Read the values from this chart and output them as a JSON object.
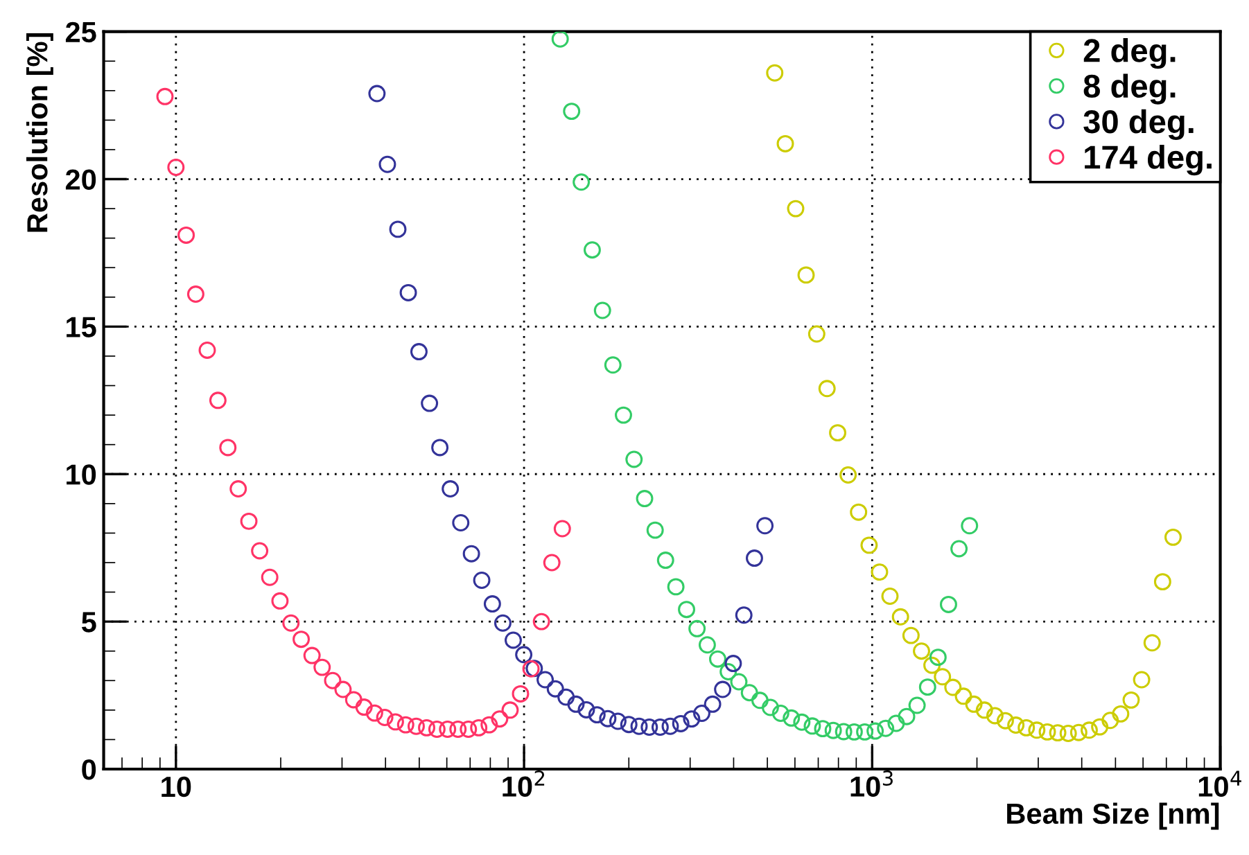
{
  "chart_data": {
    "type": "scatter",
    "xlabel": "Beam Size [nm]",
    "ylabel": "Resolution [%]",
    "log": "x",
    "xlim": [
      6.2,
      10000
    ],
    "ylim": [
      0,
      25
    ],
    "xticks": [
      10,
      {
        "value": 100,
        "label": "10$^{2}$"
      },
      {
        "value": 1000,
        "label": "10$^{3}$"
      },
      {
        "value": 10000,
        "label": "10$^{4}$"
      }
    ],
    "yticks": [
      0,
      5,
      10,
      15,
      20,
      25
    ],
    "grid": true,
    "legend": "top right",
    "marker": "circle",
    "series": [
      {
        "name": "2 deg.",
        "color": "#cccc00",
        "x": [
          525,
          563,
          603,
          646,
          693,
          742,
          796,
          853,
          914,
          980,
          1050,
          1125,
          1206,
          1293,
          1386,
          1485,
          1592,
          1706,
          1829,
          1960,
          2101,
          2252,
          2413,
          2587,
          2772,
          2971,
          3185,
          3413,
          3658,
          3921,
          4203,
          4505,
          4828,
          5175,
          5546,
          5944,
          6371,
          6829,
          7319
        ],
        "values": [
          23.6,
          21.2,
          19.0,
          16.75,
          14.75,
          12.9,
          11.4,
          9.97,
          8.71,
          7.59,
          6.68,
          5.86,
          5.16,
          4.53,
          4.0,
          3.52,
          3.13,
          2.77,
          2.47,
          2.2,
          2.0,
          1.81,
          1.64,
          1.49,
          1.4,
          1.32,
          1.26,
          1.23,
          1.21,
          1.24,
          1.32,
          1.43,
          1.65,
          1.87,
          2.34,
          3.03,
          4.28,
          6.35,
          7.86
        ]
      },
      {
        "name": "8 deg.",
        "color": "#33cc66",
        "x": [
          127,
          137,
          146,
          157,
          168,
          180,
          193,
          207,
          222,
          238,
          255,
          273,
          293,
          314,
          336,
          360,
          386,
          414,
          444,
          476,
          510,
          546,
          586,
          628,
          673,
          721,
          773,
          828,
          888,
          952,
          1020,
          1093,
          1172,
          1256,
          1346,
          1443,
          1546,
          1657,
          1776,
          1904
        ],
        "values": [
          24.75,
          22.3,
          19.9,
          17.6,
          15.55,
          13.7,
          12.0,
          10.5,
          9.17,
          8.1,
          7.08,
          6.18,
          5.41,
          4.76,
          4.21,
          3.73,
          3.3,
          2.96,
          2.59,
          2.33,
          2.09,
          1.89,
          1.73,
          1.59,
          1.46,
          1.37,
          1.31,
          1.27,
          1.26,
          1.26,
          1.29,
          1.38,
          1.55,
          1.78,
          2.16,
          2.78,
          3.79,
          5.58,
          7.47,
          8.25
        ]
      },
      {
        "name": "30 deg.",
        "color": "#333399",
        "x": [
          37.8,
          40.5,
          43.4,
          46.5,
          49.9,
          53.5,
          57.3,
          61.4,
          65.8,
          70.6,
          75.6,
          81.1,
          86.9,
          93.1,
          99.8,
          107,
          115,
          123,
          132,
          141,
          151,
          162,
          174,
          186,
          200,
          214,
          229,
          246,
          263,
          282,
          303,
          324,
          348,
          372,
          399,
          428,
          459,
          492
        ],
        "values": [
          22.9,
          20.5,
          18.3,
          16.15,
          14.15,
          12.4,
          10.9,
          9.5,
          8.35,
          7.3,
          6.4,
          5.6,
          4.95,
          4.37,
          3.88,
          3.41,
          3.03,
          2.72,
          2.44,
          2.2,
          2.01,
          1.84,
          1.71,
          1.62,
          1.51,
          1.45,
          1.42,
          1.42,
          1.45,
          1.54,
          1.7,
          1.89,
          2.2,
          2.7,
          3.58,
          5.22,
          7.15,
          8.25
        ]
      },
      {
        "name": "174 deg.",
        "color": "#ff3366",
        "x": [
          9.3,
          10.0,
          10.7,
          11.4,
          12.3,
          13.2,
          14.1,
          15.1,
          16.2,
          17.4,
          18.6,
          19.9,
          21.4,
          22.9,
          24.6,
          26.3,
          28.2,
          30.2,
          32.4,
          34.7,
          37.2,
          39.8,
          42.7,
          45.7,
          49.0,
          52.5,
          56.2,
          60.3,
          64.6,
          69.2,
          74.1,
          79.4,
          85.1,
          91.2,
          97.7,
          104.7,
          112.2,
          120.2,
          128.8
        ],
        "values": [
          22.8,
          20.4,
          18.1,
          16.1,
          14.2,
          12.5,
          10.9,
          9.5,
          8.4,
          7.4,
          6.5,
          5.7,
          4.95,
          4.4,
          3.85,
          3.45,
          3.0,
          2.7,
          2.35,
          2.1,
          1.9,
          1.75,
          1.6,
          1.5,
          1.45,
          1.4,
          1.35,
          1.35,
          1.35,
          1.35,
          1.4,
          1.5,
          1.7,
          2.0,
          2.55,
          3.4,
          5.0,
          7.0,
          8.15
        ]
      }
    ]
  }
}
